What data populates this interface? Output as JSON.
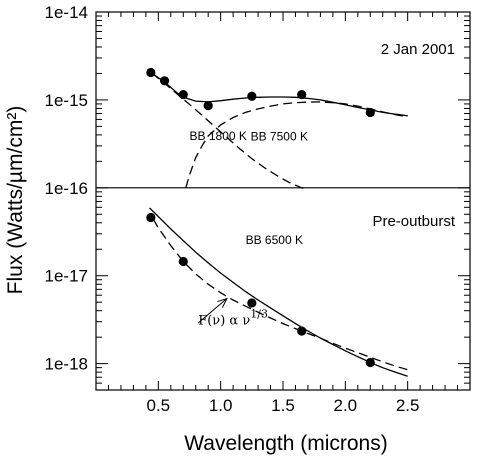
{
  "chart_data": {
    "type": "scatter",
    "xlabel": "Wavelength (microns)",
    "ylabel": "Flux (Watts/µm/cm²)",
    "xlim": [
      0.0,
      3.0
    ],
    "ylim_exp": [
      -18.3,
      -14.0
    ],
    "log_y": true,
    "grid": false,
    "x_ticks": [
      "0.5",
      "1.0",
      "1.5",
      "2.0",
      "2.5"
    ],
    "x_tick_values": [
      0.5,
      1.0,
      1.5,
      2.0,
      2.5
    ],
    "y_ticks": [
      "1e-14",
      "1e-15",
      "1e-16",
      "1e-17",
      "1e-18"
    ],
    "y_tick_exps": [
      -14,
      -15,
      -16,
      -17,
      -18
    ],
    "divider_exp": -16,
    "panels": [
      {
        "name": "top",
        "label": "2 Jan 2001",
        "points": [
          {
            "x": 0.44,
            "y": 2.05e-15
          },
          {
            "x": 0.55,
            "y": 1.65e-15
          },
          {
            "x": 0.7,
            "y": 1.15e-15
          },
          {
            "x": 0.9,
            "y": 8.6e-16
          },
          {
            "x": 1.25,
            "y": 1.1e-15
          },
          {
            "x": 1.65,
            "y": 1.15e-15
          },
          {
            "x": 2.2,
            "y": 7.2e-16
          }
        ],
        "curves": [
          {
            "style": "solid",
            "x": [
              0.45,
              0.55,
              0.65,
              0.72,
              0.8,
              0.9,
              1.0,
              1.1,
              1.2,
              1.3,
              1.4,
              1.5,
              1.6,
              1.7,
              1.8,
              1.9,
              2.0,
              2.1,
              2.2,
              2.3,
              2.4,
              2.5
            ],
            "y": [
              2e-15,
              1.6e-15,
              1.2e-15,
              1.05e-15,
              9.7e-16,
              9.5e-16,
              9.8e-16,
              1.02e-15,
              1.05e-15,
              1.07e-15,
              1.08e-15,
              1.08e-15,
              1.07e-15,
              1.04e-15,
              1e-15,
              9.4e-16,
              8.8e-16,
              8.2e-16,
              7.7e-16,
              7.2e-16,
              6.9e-16,
              6.6e-16
            ]
          },
          {
            "name": "BB 1800 K",
            "label_x": 0.75,
            "label_y": 3.5e-16,
            "style": "dashed",
            "x": [
              0.72,
              0.75,
              0.8,
              0.85,
              0.9,
              1.0,
              1.1,
              1.2,
              1.3,
              1.4,
              1.5,
              1.6,
              1.7,
              1.8,
              1.9,
              2.0,
              2.1,
              2.2,
              2.3,
              2.4,
              2.5
            ],
            "y": [
              1e-16,
              1.4e-16,
              2.2e-16,
              3e-16,
              3.9e-16,
              5.2e-16,
              6.3e-16,
              7.2e-16,
              7.9e-16,
              8.5e-16,
              9e-16,
              9.3e-16,
              9.45e-16,
              9.5e-16,
              9.3e-16,
              9e-16,
              8.5e-16,
              7.9e-16,
              7.3e-16,
              6.8e-16,
              6.4e-16
            ]
          },
          {
            "name": "BB 7500 K",
            "label_x": 1.24,
            "label_y": 3.45e-16,
            "style": "dashed",
            "x": [
              0.45,
              0.55,
              0.65,
              0.75,
              0.85,
              0.95,
              1.05,
              1.15,
              1.25,
              1.35,
              1.45,
              1.55,
              1.65,
              1.7
            ],
            "y": [
              2e-15,
              1.55e-15,
              1.17e-15,
              8.9e-16,
              6.7e-16,
              5e-16,
              3.75e-16,
              2.8e-16,
              2.15e-16,
              1.7e-16,
              1.38e-16,
              1.15e-16,
              1e-16,
              9.5e-17
            ]
          }
        ]
      },
      {
        "name": "bottom",
        "label": "Pre-outburst",
        "points": [
          {
            "x": 0.44,
            "y": 4.6e-17
          },
          {
            "x": 0.7,
            "y": 1.45e-17
          },
          {
            "x": 1.25,
            "y": 4.9e-18
          },
          {
            "x": 1.65,
            "y": 2.35e-18
          },
          {
            "x": 2.2,
            "y": 1.03e-18
          }
        ],
        "curves": [
          {
            "name": "BB 6500 K",
            "label_x": 1.2,
            "label_y": 2.3e-17,
            "style": "solid",
            "x": [
              0.43,
              0.5,
              0.6,
              0.7,
              0.8,
              0.9,
              1.0,
              1.1,
              1.2,
              1.3,
              1.4,
              1.5,
              1.6,
              1.7,
              1.8,
              1.9,
              2.0,
              2.1,
              2.2,
              2.3,
              2.4,
              2.5
            ],
            "y": [
              5.9e-17,
              4.7e-17,
              3.4e-17,
              2.5e-17,
              1.85e-17,
              1.4e-17,
              1.07e-17,
              8.4e-18,
              6.6e-18,
              5.3e-18,
              4.3e-18,
              3.5e-18,
              2.85e-18,
              2.35e-18,
              1.95e-18,
              1.65e-18,
              1.4e-18,
              1.2e-18,
              1.03e-18,
              9e-19,
              8e-19,
              7.2e-19
            ]
          },
          {
            "name": "F(ν) α ν",
            "superscript": "1/3",
            "label_x": 0.82,
            "label_y": 2.8e-18,
            "style": "dashed",
            "x": [
              0.46,
              0.5,
              0.6,
              0.7,
              0.8,
              0.9,
              1.0,
              1.1,
              1.2,
              1.3,
              1.4,
              1.5,
              1.6,
              1.7,
              1.8,
              1.9,
              2.0,
              2.1,
              2.2,
              2.3,
              2.4,
              2.5
            ],
            "y": [
              4.4e-17,
              3.5e-17,
              2.2e-17,
              1.45e-17,
              1.05e-17,
              8e-18,
              6.4e-18,
              5.3e-18,
              4.5e-18,
              3.85e-18,
              3.3e-18,
              2.85e-18,
              2.5e-18,
              2.2e-18,
              1.95e-18,
              1.7e-18,
              1.5e-18,
              1.33e-18,
              1.18e-18,
              1.05e-18,
              9.4e-19,
              8.5e-19
            ]
          }
        ]
      }
    ],
    "annotation": {
      "from_x": 0.82,
      "from_y": 2.9e-18,
      "to_x": 1.05,
      "to_y": 5.5e-18
    }
  }
}
